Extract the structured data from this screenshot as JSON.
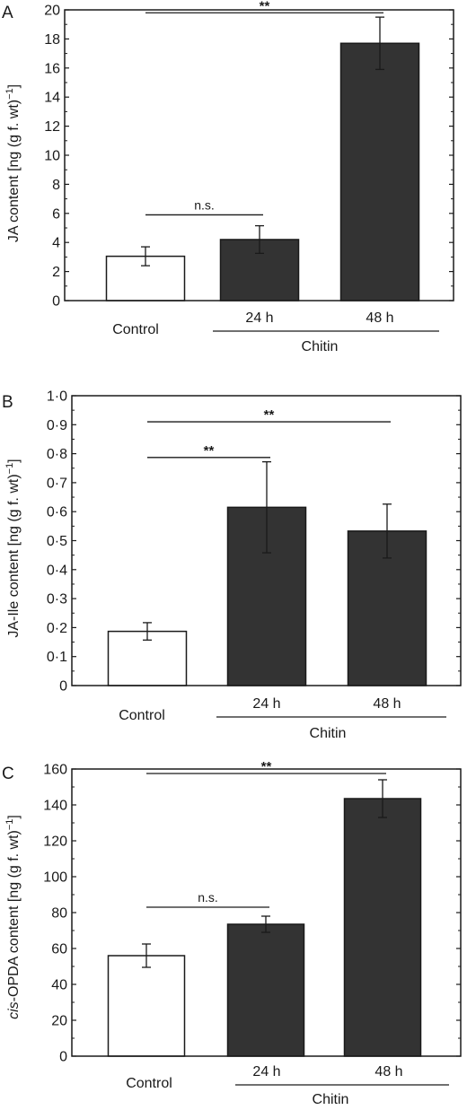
{
  "chart_data": [
    {
      "type": "bar",
      "panel": "A",
      "ylabel_parts": [
        "JA content [ng (g f. wt)",
        "−1",
        "]"
      ],
      "ylim": [
        0,
        20
      ],
      "yticks": [
        "0",
        "2",
        "4",
        "6",
        "8",
        "10",
        "12",
        "14",
        "16",
        "18",
        "20"
      ],
      "categories": [
        "Control",
        "24 h",
        "48 h"
      ],
      "group_label": "Chitin",
      "values": [
        3.05,
        4.2,
        17.7
      ],
      "errors": [
        0.65,
        0.95,
        1.8
      ],
      "fill_colors": [
        "#ffffff",
        "#333333",
        "#333333"
      ],
      "significance": [
        {
          "from": 0,
          "to": 1,
          "label": "n.s.",
          "y": 5.9
        },
        {
          "from": 0,
          "to": 2,
          "label": "**",
          "y": 19.8
        }
      ]
    },
    {
      "type": "bar",
      "panel": "B",
      "ylabel_parts": [
        "JA-Ile content [ng (g f. wt)",
        "−1",
        "]"
      ],
      "ylim": [
        0,
        1.0
      ],
      "yticks": [
        "0",
        "0·1",
        "0·2",
        "0·3",
        "0·4",
        "0·5",
        "0·6",
        "0·7",
        "0·8",
        "0·9",
        "1·0"
      ],
      "categories": [
        "Control",
        "24 h",
        "48 h"
      ],
      "group_label": "Chitin",
      "values": [
        0.187,
        0.615,
        0.533
      ],
      "errors": [
        0.03,
        0.157,
        0.093
      ],
      "fill_colors": [
        "#ffffff",
        "#333333",
        "#333333"
      ],
      "significance": [
        {
          "from": 0,
          "to": 1,
          "label": "**",
          "y": 0.787
        },
        {
          "from": 0,
          "to": 2,
          "label": "**",
          "y": 0.91
        }
      ]
    },
    {
      "type": "bar",
      "panel": "C",
      "ylabel_parts": [
        "cis",
        "-OPDA content [ng (g f. wt)",
        "−1",
        "]"
      ],
      "ylim": [
        0,
        160
      ],
      "yticks": [
        "0",
        "20",
        "40",
        "60",
        "80",
        "100",
        "120",
        "140",
        "160"
      ],
      "categories": [
        "Control",
        "24 h",
        "48 h"
      ],
      "group_label": "Chitin",
      "values": [
        56,
        73.5,
        143.5
      ],
      "errors": [
        6.5,
        4.5,
        10.5
      ],
      "fill_colors": [
        "#ffffff",
        "#333333",
        "#333333"
      ],
      "significance": [
        {
          "from": 0,
          "to": 1,
          "label": "n.s.",
          "y": 83
        },
        {
          "from": 0,
          "to": 2,
          "label": "**",
          "y": 157.5
        }
      ]
    }
  ]
}
